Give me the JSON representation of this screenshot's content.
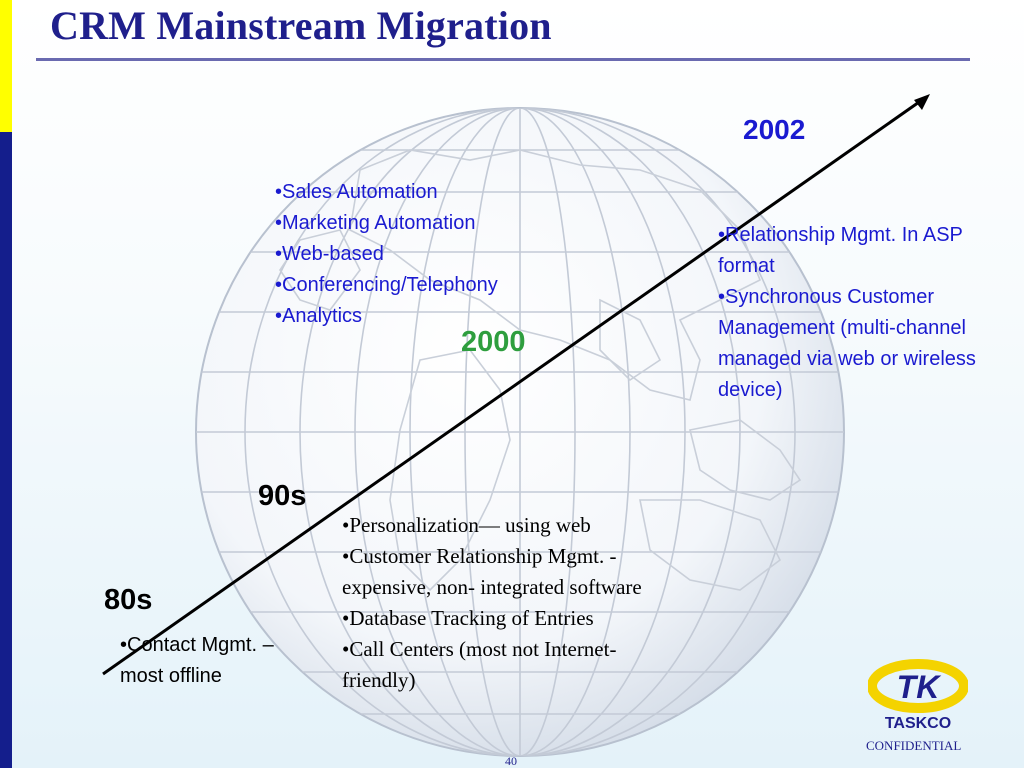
{
  "slide": {
    "title": "CRM Mainstream Migration",
    "page_number": "40",
    "confidential": "CONFIDENTIAL",
    "logo": {
      "mark": "TK",
      "name": "TASKCO"
    }
  },
  "timeline": {
    "eras": [
      {
        "label": "80s",
        "color": "#000000"
      },
      {
        "label": "90s",
        "color": "#000000"
      },
      {
        "label": "2000",
        "color": "#2e9e3e"
      },
      {
        "label": "2002",
        "color": "#1a1ad0"
      }
    ]
  },
  "era_80s": {
    "items": [
      "•Contact Mgmt. – most offline"
    ]
  },
  "era_90s": {
    "items": [
      "•Personalization— using web",
      "•Customer Relationship Mgmt. - expensive, non- integrated software",
      "•Database Tracking of Entries",
      "•Call Centers (most not Internet-friendly)"
    ]
  },
  "era_2000": {
    "items": [
      "•Sales Automation",
      "•Marketing Automation",
      "•Web-based",
      "•Conferencing/Telephony",
      "•Analytics"
    ]
  },
  "era_2002": {
    "items": [
      "•Relationship Mgmt. In ASP format",
      "•Synchronous Customer Management (multi-channel managed via web or wireless device)"
    ]
  },
  "colors": {
    "title": "#1f1f8c",
    "bullet_blue": "#1a1ad0",
    "year_green": "#2e9e3e",
    "side_bar": "#141e8c",
    "side_accent": "#ffff00"
  }
}
